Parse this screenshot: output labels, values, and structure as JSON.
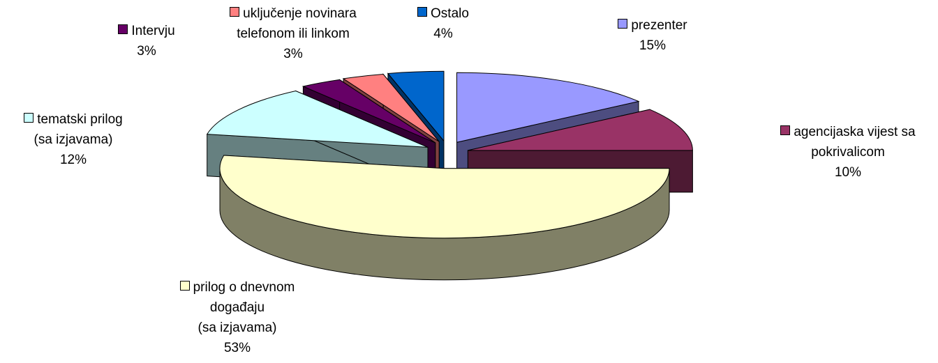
{
  "chart_data": {
    "type": "pie3d",
    "categories": [
      "prezenter",
      "agencijaska vijest sa\npokrivalicom",
      "prilog o dnevnom\ndogađaju\n(sa izjavama)",
      "tematski prilog\n(sa izjavama)",
      "Intervju",
      "uključenje novinara\ntelefonom ili linkom",
      "Ostalo"
    ],
    "values": [
      15,
      10,
      53,
      12,
      3,
      3,
      4
    ],
    "value_labels": [
      "15%",
      "10%",
      "53%",
      "12%",
      "3%",
      "3%",
      "4%"
    ],
    "colors": [
      "#9999ff",
      "#993366",
      "#ffffcc",
      "#ccffff",
      "#660066",
      "#ff8080",
      "#0066cc"
    ]
  }
}
